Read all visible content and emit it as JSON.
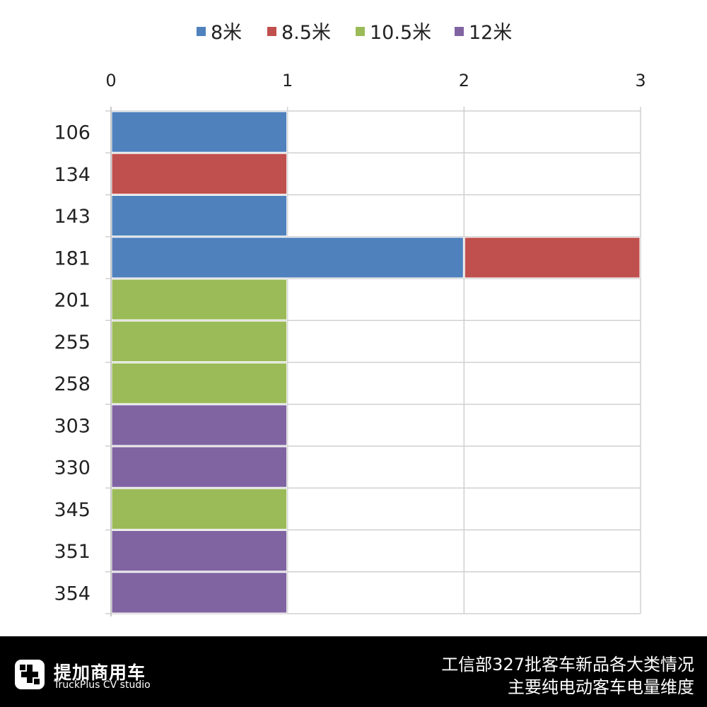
{
  "chart_data": {
    "type": "bar",
    "orientation": "horizontal",
    "stacked": true,
    "categories": [
      "106",
      "134",
      "143",
      "181",
      "201",
      "255",
      "258",
      "303",
      "330",
      "345",
      "351",
      "354"
    ],
    "series": [
      {
        "name": "8米",
        "color": "#4F81BD",
        "values": [
          1,
          0,
          1,
          2,
          0,
          0,
          0,
          0,
          0,
          0,
          0,
          0
        ]
      },
      {
        "name": "8.5米",
        "color": "#C0504D",
        "values": [
          0,
          1,
          0,
          1,
          0,
          0,
          0,
          0,
          0,
          0,
          0,
          0
        ]
      },
      {
        "name": "10.5米",
        "color": "#9BBB59",
        "values": [
          0,
          0,
          0,
          0,
          1,
          1,
          1,
          0,
          0,
          1,
          0,
          0
        ]
      },
      {
        "name": "12米",
        "color": "#8064A2",
        "values": [
          0,
          0,
          0,
          0,
          0,
          0,
          0,
          1,
          1,
          0,
          1,
          1
        ]
      }
    ],
    "xlim": [
      0,
      3
    ],
    "xticks": [
      "0",
      "1",
      "2",
      "3"
    ],
    "x_axis_position": "top",
    "legend_position": "top",
    "grid": true
  },
  "footer": {
    "brand_cn": "提加商用车",
    "brand_en": "TruckPlus CV studio",
    "caption_line1": "工信部327批客车新品各大类情况",
    "caption_line2": "主要纯电动客车电量维度"
  },
  "colors": {
    "footer_bg": "#000000",
    "gridline": "#d0d0d0"
  }
}
